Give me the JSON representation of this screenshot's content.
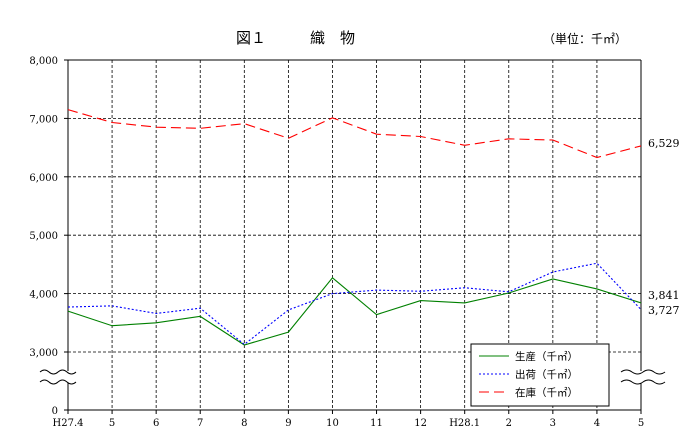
{
  "chart_data": {
    "type": "line",
    "title_main": "図１",
    "title_sub": "織　物",
    "unit_label": "（単位：千㎡）",
    "categories": [
      "H27.4",
      "5",
      "6",
      "7",
      "8",
      "9",
      "10",
      "11",
      "12",
      "H28.1",
      "2",
      "3",
      "4",
      "5"
    ],
    "ylim": [
      0,
      8000
    ],
    "broken_axis_between": [
      0,
      3000
    ],
    "y_ticks": [
      {
        "value": 0,
        "label": "0"
      },
      {
        "value": 3000,
        "label": "3,000"
      },
      {
        "value": 4000,
        "label": "4,000"
      },
      {
        "value": 5000,
        "label": "5,000"
      },
      {
        "value": 6000,
        "label": "6,000"
      },
      {
        "value": 7000,
        "label": "7,000"
      },
      {
        "value": 8000,
        "label": "8,000"
      }
    ],
    "grid": true,
    "legend_position": "bottom-right",
    "series": [
      {
        "name": "生産（千㎡）",
        "color": "#008000",
        "dash": "solid",
        "values": [
          3700,
          3450,
          3500,
          3610,
          3120,
          3340,
          4270,
          3640,
          3880,
          3840,
          4010,
          4250,
          4080,
          3841
        ]
      },
      {
        "name": "出荷（千㎡）",
        "color": "#0000ff",
        "dash": "dotted",
        "values": [
          3770,
          3790,
          3660,
          3750,
          3130,
          3720,
          4000,
          4060,
          4040,
          4100,
          4030,
          4370,
          4520,
          3727
        ]
      },
      {
        "name": "在庫（千㎡）",
        "color": "#ff0000",
        "dash": "dashed",
        "values": [
          7150,
          6930,
          6850,
          6830,
          6910,
          6660,
          7010,
          6730,
          6690,
          6540,
          6650,
          6630,
          6330,
          6529
        ]
      }
    ],
    "end_labels": [
      {
        "series": 2,
        "text": "6,529"
      },
      {
        "series": 0,
        "text": "3,841"
      },
      {
        "series": 1,
        "text": "3,727"
      }
    ]
  }
}
